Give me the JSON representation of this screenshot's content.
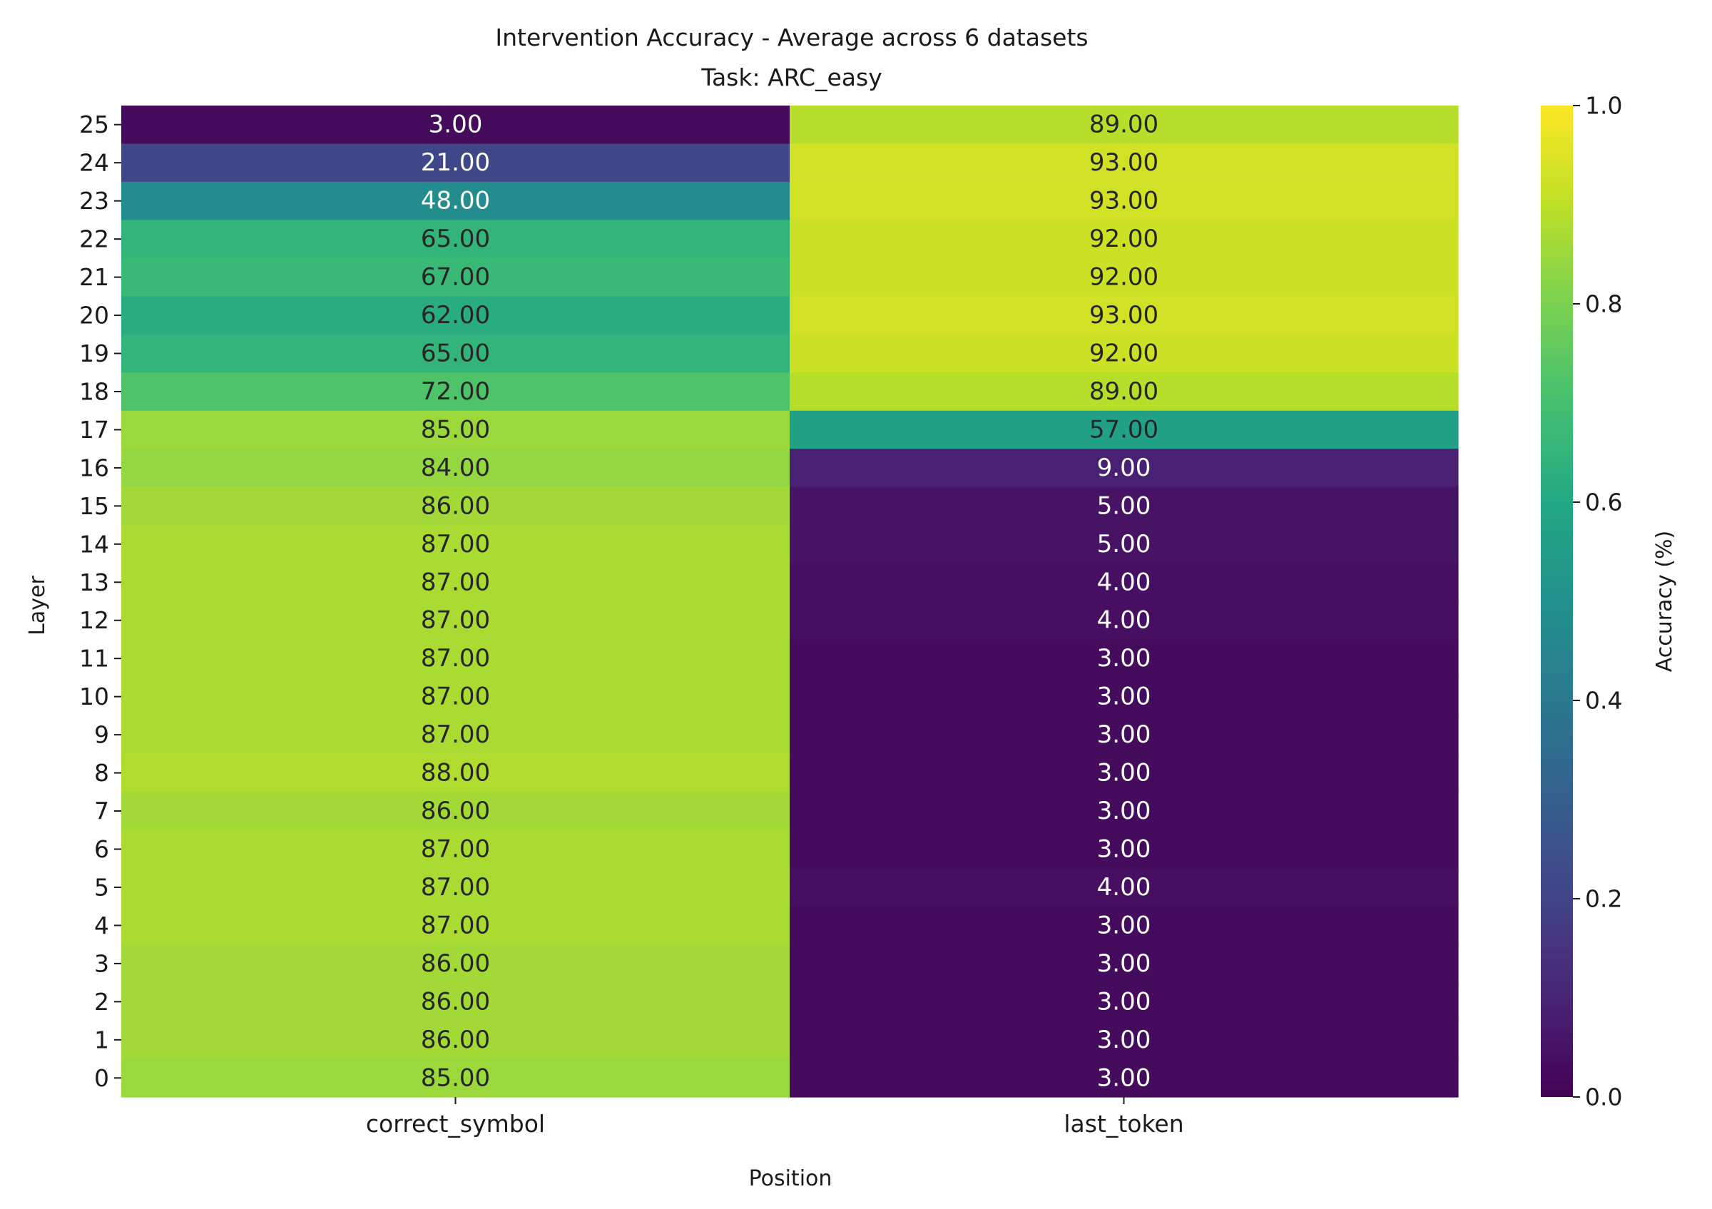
{
  "chart_data": {
    "type": "heatmap",
    "title": "Intervention Accuracy - Average across 6 datasets",
    "subtitle": "Task: ARC_easy",
    "xlabel": "Position",
    "ylabel": "Layer",
    "columns": [
      "correct_symbol",
      "last_token"
    ],
    "rows": [
      "25",
      "24",
      "23",
      "22",
      "21",
      "20",
      "19",
      "18",
      "17",
      "16",
      "15",
      "14",
      "13",
      "12",
      "11",
      "10",
      "9",
      "8",
      "7",
      "6",
      "5",
      "4",
      "3",
      "2",
      "1",
      "0"
    ],
    "values": [
      [
        0.03,
        0.89
      ],
      [
        0.21,
        0.93
      ],
      [
        0.48,
        0.93
      ],
      [
        0.65,
        0.92
      ],
      [
        0.67,
        0.92
      ],
      [
        0.62,
        0.93
      ],
      [
        0.65,
        0.92
      ],
      [
        0.72,
        0.89
      ],
      [
        0.85,
        0.57
      ],
      [
        0.84,
        0.09
      ],
      [
        0.86,
        0.05
      ],
      [
        0.87,
        0.05
      ],
      [
        0.87,
        0.04
      ],
      [
        0.87,
        0.04
      ],
      [
        0.87,
        0.03
      ],
      [
        0.87,
        0.03
      ],
      [
        0.87,
        0.03
      ],
      [
        0.88,
        0.03
      ],
      [
        0.86,
        0.03
      ],
      [
        0.87,
        0.03
      ],
      [
        0.87,
        0.04
      ],
      [
        0.87,
        0.03
      ],
      [
        0.86,
        0.03
      ],
      [
        0.86,
        0.03
      ],
      [
        0.86,
        0.03
      ],
      [
        0.85,
        0.03
      ]
    ],
    "annotations": [
      [
        "3.00",
        "89.00"
      ],
      [
        "21.00",
        "93.00"
      ],
      [
        "48.00",
        "93.00"
      ],
      [
        "65.00",
        "92.00"
      ],
      [
        "67.00",
        "92.00"
      ],
      [
        "62.00",
        "93.00"
      ],
      [
        "65.00",
        "92.00"
      ],
      [
        "72.00",
        "89.00"
      ],
      [
        "85.00",
        "57.00"
      ],
      [
        "84.00",
        "9.00"
      ],
      [
        "86.00",
        "5.00"
      ],
      [
        "87.00",
        "5.00"
      ],
      [
        "87.00",
        "4.00"
      ],
      [
        "87.00",
        "4.00"
      ],
      [
        "87.00",
        "3.00"
      ],
      [
        "87.00",
        "3.00"
      ],
      [
        "87.00",
        "3.00"
      ],
      [
        "88.00",
        "3.00"
      ],
      [
        "86.00",
        "3.00"
      ],
      [
        "87.00",
        "3.00"
      ],
      [
        "87.00",
        "4.00"
      ],
      [
        "87.00",
        "3.00"
      ],
      [
        "86.00",
        "3.00"
      ],
      [
        "86.00",
        "3.00"
      ],
      [
        "86.00",
        "3.00"
      ],
      [
        "85.00",
        "3.00"
      ]
    ],
    "colormap": "viridis",
    "vmin": 0.0,
    "vmax": 1.0,
    "colorbar": {
      "label": "Accuracy (%)",
      "ticks": [
        "0.0",
        "0.2",
        "0.4",
        "0.6",
        "0.8",
        "1.0"
      ]
    }
  }
}
